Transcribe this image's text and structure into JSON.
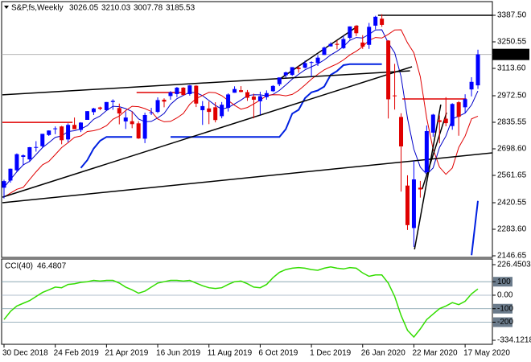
{
  "chart_data": [
    {
      "type": "candlestick",
      "title": "S&P,fs,Weekly",
      "header_values": [
        3026.05,
        3210.03,
        3007.78,
        3185.53
      ],
      "categories": [
        "30 Dec 2018",
        null,
        null,
        null,
        null,
        null,
        null,
        null,
        "24 Feb 2019",
        null,
        null,
        null,
        null,
        null,
        null,
        null,
        "21 Apr 2019",
        null,
        null,
        null,
        null,
        null,
        null,
        null,
        "16 Jun 2019",
        null,
        null,
        null,
        null,
        null,
        null,
        null,
        "11 Aug 2019",
        null,
        null,
        null,
        null,
        null,
        null,
        null,
        "6 Oct 2019",
        null,
        null,
        null,
        null,
        null,
        null,
        null,
        "1 Dec 2019",
        null,
        null,
        null,
        null,
        null,
        null,
        null,
        "26 Jan 2020",
        null,
        null,
        null,
        null,
        null,
        null,
        null,
        "22 Mar 2020",
        null,
        null,
        null,
        null,
        null,
        null,
        null,
        "17 May 2020",
        null,
        null
      ],
      "open": [
        2498,
        2535,
        2588,
        2657,
        2644,
        2706,
        2712,
        2770,
        2804,
        2814,
        2747,
        2822,
        2796,
        2848,
        2888,
        2912,
        2898,
        2940,
        2909,
        2840,
        2841,
        2830,
        2751,
        2885,
        2889,
        2952,
        2971,
        2981,
        3014,
        2981,
        3024,
        2898,
        2907,
        2913,
        2867,
        2910,
        2988,
        3001,
        2991,
        2968,
        2944,
        2965,
        2996,
        3032,
        3078,
        3080,
        3117,
        3117,
        3143,
        3141,
        3183,
        3227,
        3240,
        3218,
        3271,
        3333,
        3247,
        3235,
        3334,
        3370,
        3257,
        2974,
        2863,
        2509,
        2290,
        2498,
        2578,
        2782,
        2846,
        2854,
        2816,
        2939,
        2913,
        3005,
        3026.05
      ],
      "high": [
        2539,
        2597,
        2675,
        2670,
        2708,
        2738,
        2775,
        2794,
        2814,
        2817,
        2830,
        2860,
        2836,
        2893,
        2910,
        2916,
        2940,
        2954,
        2932,
        2892,
        2892,
        2841,
        2885,
        2910,
        2964,
        2959,
        2996,
        3018,
        3017,
        3028,
        3027,
        2945,
        2943,
        2939,
        2940,
        2985,
        3021,
        3022,
        3002,
        2983,
        2993,
        3000,
        3027,
        3066,
        3097,
        3120,
        3127,
        3154,
        3150,
        3182,
        3226,
        3248,
        3259,
        3282,
        3330,
        3338,
        3285,
        3348,
        3385,
        3393,
        3259,
        3137,
        2882,
        2562,
        2637,
        2533,
        2819,
        2879,
        2871,
        2965,
        2934,
        2945,
        2980,
        3068,
        3210.03
      ],
      "low": [
        2443,
        2524,
        2580,
        2613,
        2631,
        2684,
        2705,
        2765,
        2774,
        2722,
        2732,
        2800,
        2785,
        2848,
        2873,
        2898,
        2898,
        2900,
        2825,
        2801,
        2805,
        2750,
        2728,
        2873,
        2883,
        2913,
        2952,
        2965,
        2975,
        2973,
        2914,
        2822,
        2826,
        2835,
        2856,
        2891,
        2988,
        2990,
        2946,
        2856,
        2874,
        2952,
        2992,
        3022,
        3065,
        3074,
        3091,
        3113,
        3070,
        3126,
        3183,
        3227,
        3212,
        3214,
        3262,
        3280,
        3214,
        3214,
        3315,
        3328,
        2855,
        2901,
        2478,
        2280,
        2192,
        2447,
        2574,
        2761,
        2727,
        2815,
        2797,
        2766,
        2881,
        2969,
        3007.78
      ],
      "close": [
        2532,
        2596,
        2671,
        2665,
        2707,
        2708,
        2776,
        2793,
        2804,
        2743,
        2822,
        2800,
        2834,
        2893,
        2907,
        2905,
        2940,
        2946,
        2881,
        2860,
        2826,
        2752,
        2873,
        2887,
        2950,
        2942,
        2990,
        3014,
        2976,
        3026,
        2932,
        2919,
        2889,
        2847,
        2926,
        2979,
        3007,
        2992,
        2962,
        2952,
        2970,
        2986,
        3023,
        3067,
        3093,
        3120,
        3110,
        3141,
        3146,
        3169,
        3221,
        3240,
        3235,
        3265,
        3330,
        3295,
        3226,
        3328,
        3380,
        3338,
        2954,
        2972,
        2711,
        2305,
        2541,
        2489,
        2790,
        2875,
        2837,
        2831,
        2930,
        2864,
        2955,
        3044,
        3185.53
      ],
      "up_color": "#0000ff",
      "down_color": "#e00000",
      "lines": [
        {
          "color": "#0000c8",
          "values": [
            2500,
            2540,
            2580,
            2616,
            2634,
            2669,
            2705,
            2730,
            2758,
            2765,
            2788,
            2792,
            2801,
            2818,
            2851,
            2868,
            2896,
            2918,
            2916,
            2906,
            2891,
            2853,
            2838,
            2840,
            2858,
            2881,
            2928,
            2957,
            2974,
            2990,
            2988,
            2973,
            2948,
            2923,
            2903,
            2912,
            2930,
            2950,
            2973,
            2978,
            2977,
            2972,
            2979,
            3000,
            3028,
            3058,
            3083,
            3106,
            3122,
            3137,
            3157,
            3183,
            3202,
            3226,
            3258,
            3273,
            3270,
            3289,
            3312,
            3313,
            3245,
            3194,
            3071,
            2856,
            2697,
            2604,
            2567,
            2600,
            2706,
            2764,
            2853,
            2867,
            2883,
            2925,
            2997
          ]
        },
        {
          "color": "#e00000",
          "values": [
            2450,
            2470,
            2490,
            2500,
            2540,
            2580,
            2616,
            2634,
            2669,
            2705,
            2730,
            2758,
            2765,
            2788,
            2792,
            2801,
            2818,
            2851,
            2868,
            2896,
            2918,
            2916,
            2906,
            2891,
            2853,
            2838,
            2840,
            2858,
            2881,
            2928,
            2957,
            2974,
            2990,
            2988,
            2973,
            2948,
            2923,
            2903,
            2912,
            2930,
            2950,
            2973,
            2978,
            2977,
            2972,
            2979,
            3000,
            3028,
            3058,
            3083,
            3106,
            3122,
            3137,
            3157,
            3183,
            3202,
            3226,
            3258,
            3273,
            3270,
            3289,
            3312,
            3313,
            3245,
            3194,
            3071,
            2856,
            2697,
            2604,
            2567,
            2600,
            2706,
            2764,
            2853,
            2867
          ]
        },
        {
          "color": "#0020e0",
          "width": 2,
          "values": [
            null,
            null,
            null,
            null,
            null,
            null,
            null,
            null,
            null,
            null,
            null,
            null,
            2600,
            2640,
            2700,
            2740,
            2760,
            2760,
            2760,
            2760,
            2760,
            null,
            null,
            null,
            null,
            null,
            2760,
            2760,
            2760,
            2760,
            2760,
            2760,
            2760,
            2760,
            2760,
            2760,
            2760,
            2760,
            2760,
            2760,
            2760,
            2760,
            2760,
            2760,
            2800,
            2880,
            2900,
            2960,
            2990,
            3000,
            3020,
            3080,
            3100,
            3130,
            3135,
            3135,
            3135,
            3135,
            3135,
            3135,
            null,
            null,
            null,
            null,
            null,
            null,
            null,
            null,
            null,
            null,
            null,
            null,
            null,
            2150,
            2430
          ]
        }
      ],
      "trend_lines": [
        {
          "color": "#000000",
          "x": [
            -0.25,
            63.4
          ],
          "y": [
            2977,
            3101
          ]
        },
        {
          "color": "#000000",
          "x": [
            -0.25,
            76.3
          ],
          "y": [
            2420.55,
            2678
          ]
        },
        {
          "color": "#000000",
          "x": [
            -0.25,
            63.7
          ],
          "y": [
            2449,
            3122
          ]
        },
        {
          "color": "#000000",
          "x": [
            42.7,
            55.3
          ],
          "y": [
            3051,
            3333
          ]
        },
        {
          "color": "#000000",
          "x": [
            64.1,
            68.2
          ],
          "y": [
            2180,
            2927
          ]
        },
        {
          "color": "#000000",
          "x": [
            65.3,
            69.1
          ],
          "y": [
            2491,
            2885
          ]
        },
        {
          "color": "#000000",
          "x": [
            58.4,
            76.3
          ],
          "y": [
            3387.5,
            3387.5
          ]
        },
        {
          "color": "#e00000",
          "x": [
            -0.25,
            10.7
          ],
          "y": [
            2835,
            2835
          ]
        },
        {
          "color": "#e00000",
          "x": [
            20.7,
            28.3
          ],
          "y": [
            2989,
            2989
          ]
        },
        {
          "color": "#e00000",
          "x": [
            62.2,
            72.2
          ],
          "y": [
            2956,
            2956
          ]
        }
      ],
      "ylim": [
        2138.35,
        3453.9
      ],
      "yticks": [
        {
          "value": 3387.5,
          "label": "3387.50"
        },
        3250.55,
        {
          "value": 3113.6,
          "label": "3113.60"
        },
        {
          "value": 2972.5,
          "label": "2972.50"
        },
        2835.55,
        {
          "value": 2698.6,
          "label": "2698.60"
        },
        2561.65,
        2420.55,
        {
          "value": 2283.6,
          "label": "2283.60"
        },
        2146.65
      ]
    },
    {
      "type": "line",
      "title": "CCI(40)",
      "color": "#33dd00",
      "values": [
        -180,
        -120,
        -80,
        -60,
        -40,
        -10,
        20,
        40,
        60,
        55,
        80,
        85,
        95,
        100,
        110,
        105,
        110,
        110,
        90,
        60,
        40,
        15,
        30,
        60,
        90,
        100,
        110,
        110,
        105,
        110,
        90,
        70,
        55,
        50,
        55,
        80,
        100,
        105,
        85,
        60,
        55,
        80,
        130,
        170,
        190,
        200,
        205,
        200,
        190,
        185,
        200,
        210,
        200,
        195,
        205,
        200,
        165,
        140,
        150,
        150,
        90,
        -10,
        -150,
        -260,
        -310,
        -250,
        -180,
        -140,
        -100,
        -80,
        -55,
        -70,
        -45,
        10,
        46.4807
      ],
      "ylim": [
        -334.1218,
        226.4503
      ],
      "yticks": [
        226.4503,
        100,
        {
          "value": 0,
          "label": "0.00"
        },
        -100,
        -200,
        -334.1218
      ]
    }
  ]
}
